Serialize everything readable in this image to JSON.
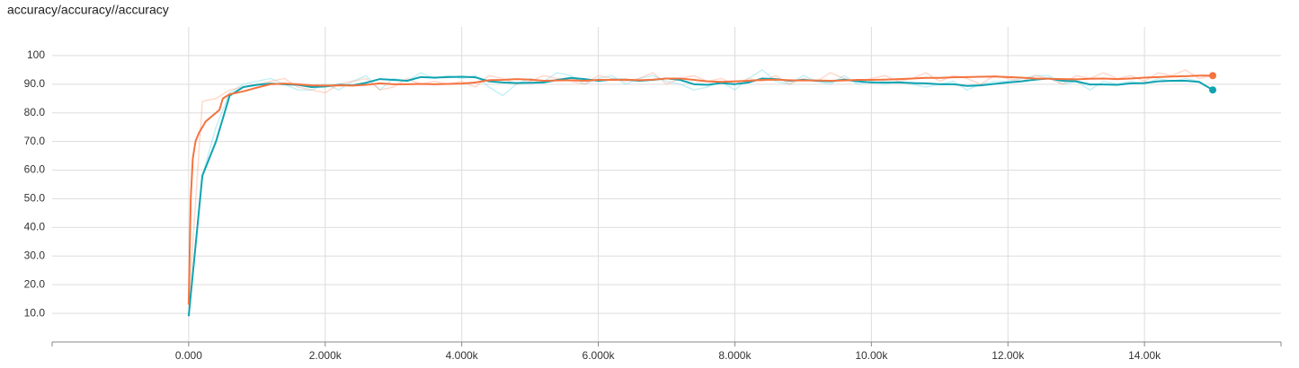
{
  "chart_data": {
    "type": "line",
    "title": "accuracy/accuracy//accuracy",
    "xlim": [
      -2000,
      16000
    ],
    "ylim": [
      0,
      110
    ],
    "grid": true,
    "xticks": [
      {
        "value": 0,
        "label": "0.000"
      },
      {
        "value": 2000,
        "label": "2.000k"
      },
      {
        "value": 4000,
        "label": "4.000k"
      },
      {
        "value": 6000,
        "label": "6.000k"
      },
      {
        "value": 8000,
        "label": "8.000k"
      },
      {
        "value": 10000,
        "label": "10.00k"
      },
      {
        "value": 12000,
        "label": "12.00k"
      },
      {
        "value": 14000,
        "label": "14.00k"
      }
    ],
    "yticks": [
      {
        "value": 10,
        "label": "10.0"
      },
      {
        "value": 20,
        "label": "20.0"
      },
      {
        "value": 30,
        "label": "30.0"
      },
      {
        "value": 40,
        "label": "40.0"
      },
      {
        "value": 50,
        "label": "50.0"
      },
      {
        "value": 60,
        "label": "60.0"
      },
      {
        "value": 70,
        "label": "70.0"
      },
      {
        "value": 80,
        "label": "80.0"
      },
      {
        "value": 90,
        "label": "90.0"
      },
      100
    ],
    "series": [
      {
        "color": "#80deea",
        "opacity": 0.45,
        "endpoint": false,
        "x": [
          0,
          200,
          400,
          600,
          800,
          1000,
          1200,
          1400,
          1600,
          1800,
          2000,
          2200,
          2400,
          2600,
          2800,
          3000,
          3200,
          3400,
          3600,
          3800,
          4000,
          4200,
          4400,
          4600,
          4800,
          5000,
          5200,
          5400,
          5600,
          5800,
          6000,
          6200,
          6400,
          6600,
          6800,
          7000,
          7200,
          7400,
          7600,
          7800,
          8000,
          8200,
          8400,
          8600,
          8800,
          9000,
          9200,
          9400,
          9600,
          9800,
          10000,
          10200,
          10400,
          10600,
          10800,
          11000,
          11200,
          11400,
          11600,
          11800,
          12000,
          12200,
          12400,
          12600,
          12800,
          13000,
          13200,
          13400,
          13600,
          13800,
          14000,
          14200,
          14400,
          14600,
          14800,
          15000
        ],
        "values": [
          9,
          58,
          75,
          87,
          90,
          91,
          92,
          90,
          88,
          88,
          90,
          88,
          91,
          93,
          88,
          92,
          91,
          94,
          92,
          93,
          92,
          93,
          89,
          86,
          90,
          92,
          91,
          94,
          93,
          90,
          92,
          93,
          90,
          92,
          93,
          91,
          90,
          88,
          89,
          91,
          88,
          92,
          95,
          91,
          90,
          93,
          91,
          90,
          93,
          90,
          91,
          90,
          91,
          90,
          89,
          90,
          91,
          88,
          90,
          91,
          91,
          92,
          93,
          93,
          90,
          91,
          88,
          91,
          90,
          91,
          90,
          92,
          91,
          92,
          91,
          88
        ]
      },
      {
        "color": "#ffab91",
        "opacity": 0.45,
        "endpoint": false,
        "x": [
          0,
          200,
          400,
          600,
          800,
          1000,
          1200,
          1400,
          1600,
          1800,
          2000,
          2200,
          2400,
          2600,
          2800,
          3000,
          3200,
          3400,
          3600,
          3800,
          4000,
          4200,
          4400,
          4600,
          4800,
          5000,
          5200,
          5400,
          5600,
          5800,
          6000,
          6200,
          6400,
          6600,
          6800,
          7000,
          7200,
          7400,
          7600,
          7800,
          8000,
          8200,
          8400,
          8600,
          8800,
          9000,
          9200,
          9400,
          9600,
          9800,
          10000,
          10200,
          10400,
          10600,
          10800,
          11000,
          11200,
          11400,
          11600,
          11800,
          12000,
          12200,
          12400,
          12600,
          12800,
          13000,
          13200,
          13400,
          13600,
          13800,
          14000,
          14200,
          14400,
          14600,
          14800,
          15000
        ],
        "values": [
          13,
          84,
          85,
          88,
          89,
          90,
          91,
          92,
          89,
          88,
          87,
          90,
          91,
          92,
          88,
          89,
          92,
          90,
          91,
          90,
          91,
          89,
          93,
          92,
          90,
          91,
          93,
          92,
          91,
          90,
          93,
          92,
          91,
          92,
          94,
          90,
          92,
          93,
          91,
          92,
          90,
          92,
          91,
          93,
          90,
          92,
          91,
          94,
          92,
          91,
          92,
          93,
          91,
          92,
          94,
          91,
          93,
          92,
          90,
          93,
          92,
          91,
          93,
          92,
          90,
          93,
          92,
          94,
          92,
          93,
          91,
          94,
          93,
          95,
          92,
          93
        ]
      },
      {
        "color": "#0fa3b1",
        "opacity": 1,
        "endpoint": true,
        "x": [
          0,
          200,
          400,
          600,
          800,
          1000,
          1200,
          1400,
          1600,
          1800,
          2000,
          2200,
          2400,
          2600,
          2800,
          3000,
          3200,
          3400,
          3600,
          3800,
          4000,
          4200,
          4400,
          4600,
          4800,
          5000,
          5200,
          5400,
          5600,
          5800,
          6000,
          6200,
          6400,
          6600,
          6800,
          7000,
          7200,
          7400,
          7600,
          7800,
          8000,
          8200,
          8400,
          8600,
          8800,
          9000,
          9200,
          9400,
          9600,
          9800,
          10000,
          10200,
          10400,
          10600,
          10800,
          11000,
          11200,
          11400,
          11600,
          11800,
          12000,
          12200,
          12400,
          12600,
          12800,
          13000,
          13200,
          13400,
          13600,
          13800,
          14000,
          14200,
          14400,
          14600,
          14800,
          15000
        ],
        "values": [
          9,
          58,
          70,
          86,
          89,
          89.8,
          90.2,
          90,
          89.8,
          89,
          89.2,
          89.8,
          89.6,
          90.5,
          91.8,
          91.5,
          91.2,
          92.5,
          92.3,
          92.5,
          92.6,
          92.4,
          91,
          90.6,
          90.4,
          90.5,
          90.6,
          91.5,
          92.2,
          91.8,
          91.2,
          91.6,
          91.6,
          91.2,
          91.5,
          92,
          91.5,
          90,
          89.8,
          90.4,
          90,
          90.6,
          92,
          91.8,
          91.2,
          91.5,
          91.2,
          91,
          91.6,
          91,
          90.6,
          90.6,
          90.6,
          90.4,
          90.3,
          90,
          90,
          89.4,
          89.6,
          90.1,
          90.6,
          91,
          91.6,
          92,
          91.2,
          91,
          89.9,
          89.9,
          89.8,
          90.3,
          90.4,
          91,
          91.2,
          91.2,
          90.8,
          88
        ]
      },
      {
        "color": "#f4733f",
        "opacity": 1,
        "endpoint": true,
        "x": [
          0,
          30,
          60,
          100,
          150,
          250,
          350,
          450,
          500,
          600,
          800,
          1000,
          1200,
          1400,
          1600,
          1800,
          2000,
          2200,
          2400,
          2600,
          2800,
          3000,
          3200,
          3400,
          3600,
          3800,
          4000,
          4200,
          4400,
          4600,
          4800,
          5000,
          5200,
          5400,
          5600,
          5800,
          6000,
          6200,
          6400,
          6600,
          6800,
          7000,
          7200,
          7400,
          7600,
          7800,
          8000,
          8200,
          8400,
          8600,
          8800,
          9000,
          9200,
          9400,
          9600,
          9800,
          10000,
          10200,
          10400,
          10600,
          10800,
          11000,
          11200,
          11400,
          11600,
          11800,
          12000,
          12200,
          12400,
          12600,
          12800,
          13000,
          13200,
          13400,
          13600,
          13800,
          14000,
          14200,
          14400,
          14600,
          14800,
          15000
        ],
        "values": [
          13,
          50,
          64,
          70,
          73,
          77,
          79,
          81,
          85,
          86.5,
          87.5,
          88.8,
          90,
          90.2,
          90,
          89.6,
          89.5,
          89.6,
          89.5,
          89.8,
          90.3,
          90,
          90,
          90.1,
          90,
          90.1,
          90.2,
          90.6,
          91.4,
          91.5,
          91.8,
          91.6,
          91.2,
          91.3,
          91.4,
          91.2,
          91.5,
          91.5,
          91.6,
          91.4,
          91.6,
          92,
          92,
          91.5,
          91,
          90.8,
          91,
          91.2,
          91.5,
          91.6,
          91.4,
          91.3,
          91.3,
          91.2,
          91.3,
          91.5,
          91.5,
          91.6,
          91.8,
          92,
          92.2,
          92.2,
          92.4,
          92.5,
          92.6,
          92.7,
          92.5,
          92.3,
          92,
          91.9,
          91.8,
          91.7,
          91.9,
          92,
          91.8,
          92,
          92.3,
          92.5,
          92.7,
          92.8,
          93,
          93
        ]
      }
    ]
  }
}
